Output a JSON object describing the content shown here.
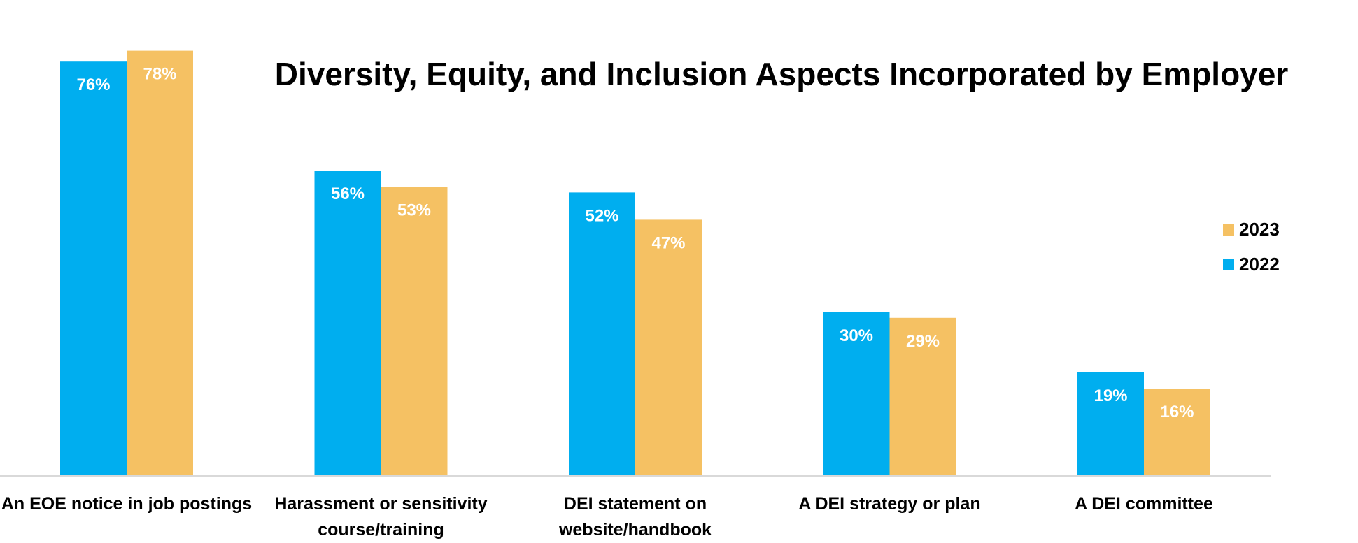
{
  "chart_data": {
    "type": "bar",
    "title": "Diversity, Equity, and Inclusion Aspects Incorporated by Employer",
    "xlabel": "",
    "ylabel": "",
    "ylim": [
      0,
      80
    ],
    "grid": false,
    "legend_position": "right",
    "categories": [
      "An EOE notice in job postings",
      "Harassment or sensitivity course/training",
      "DEI statement on website/handbook",
      "A DEI strategy or plan",
      "A DEI committee"
    ],
    "category_lines": [
      [
        "An EOE notice in job postings"
      ],
      [
        "Harassment or sensitivity",
        "course/training"
      ],
      [
        "DEI statement on",
        "website/handbook"
      ],
      [
        "A DEI strategy or plan"
      ],
      [
        "A DEI committee"
      ]
    ],
    "series": [
      {
        "name": "2022",
        "color": "#00AEEF",
        "values": [
          76,
          56,
          52,
          30,
          19
        ],
        "labels": [
          "76%",
          "56%",
          "52%",
          "30%",
          "19%"
        ]
      },
      {
        "name": "2023",
        "color": "#F5C163",
        "values": [
          78,
          53,
          47,
          29,
          16
        ],
        "labels": [
          "78%",
          "53%",
          "47%",
          "29%",
          "16%"
        ]
      }
    ],
    "legend": [
      {
        "name": "2023",
        "color": "#F5C163"
      },
      {
        "name": "2022",
        "color": "#00AEEF"
      }
    ],
    "axis_color": "#D9D9D9"
  }
}
